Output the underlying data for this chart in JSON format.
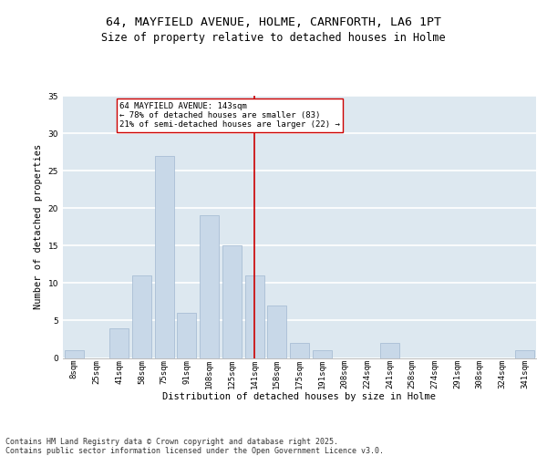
{
  "title1": "64, MAYFIELD AVENUE, HOLME, CARNFORTH, LA6 1PT",
  "title2": "Size of property relative to detached houses in Holme",
  "xlabel": "Distribution of detached houses by size in Holme",
  "ylabel": "Number of detached properties",
  "categories": [
    "8sqm",
    "25sqm",
    "41sqm",
    "58sqm",
    "75sqm",
    "91sqm",
    "108sqm",
    "125sqm",
    "141sqm",
    "158sqm",
    "175sqm",
    "191sqm",
    "208sqm",
    "224sqm",
    "241sqm",
    "258sqm",
    "274sqm",
    "291sqm",
    "308sqm",
    "324sqm",
    "341sqm"
  ],
  "values": [
    1,
    0,
    4,
    11,
    27,
    6,
    19,
    15,
    11,
    7,
    2,
    1,
    0,
    0,
    2,
    0,
    0,
    0,
    0,
    0,
    1
  ],
  "bar_color": "#c8d8e8",
  "bar_edge_color": "#a0b8d0",
  "vline_index": 8,
  "property_line_label": "64 MAYFIELD AVENUE: 143sqm",
  "pct_smaller": "78% of detached houses are smaller (83)",
  "pct_larger": "21% of semi-detached houses are larger (22)",
  "annotation_box_color": "#ffffff",
  "annotation_border_color": "#cc0000",
  "vline_color": "#cc0000",
  "ylim": [
    0,
    35
  ],
  "yticks": [
    0,
    5,
    10,
    15,
    20,
    25,
    30,
    35
  ],
  "footer1": "Contains HM Land Registry data © Crown copyright and database right 2025.",
  "footer2": "Contains public sector information licensed under the Open Government Licence v3.0.",
  "background_color": "#dde8f0",
  "grid_color": "#ffffff",
  "title_fontsize": 9.5,
  "subtitle_fontsize": 8.5,
  "axis_label_fontsize": 7.5,
  "tick_fontsize": 6.5,
  "annotation_fontsize": 6.5,
  "footer_fontsize": 6.0
}
